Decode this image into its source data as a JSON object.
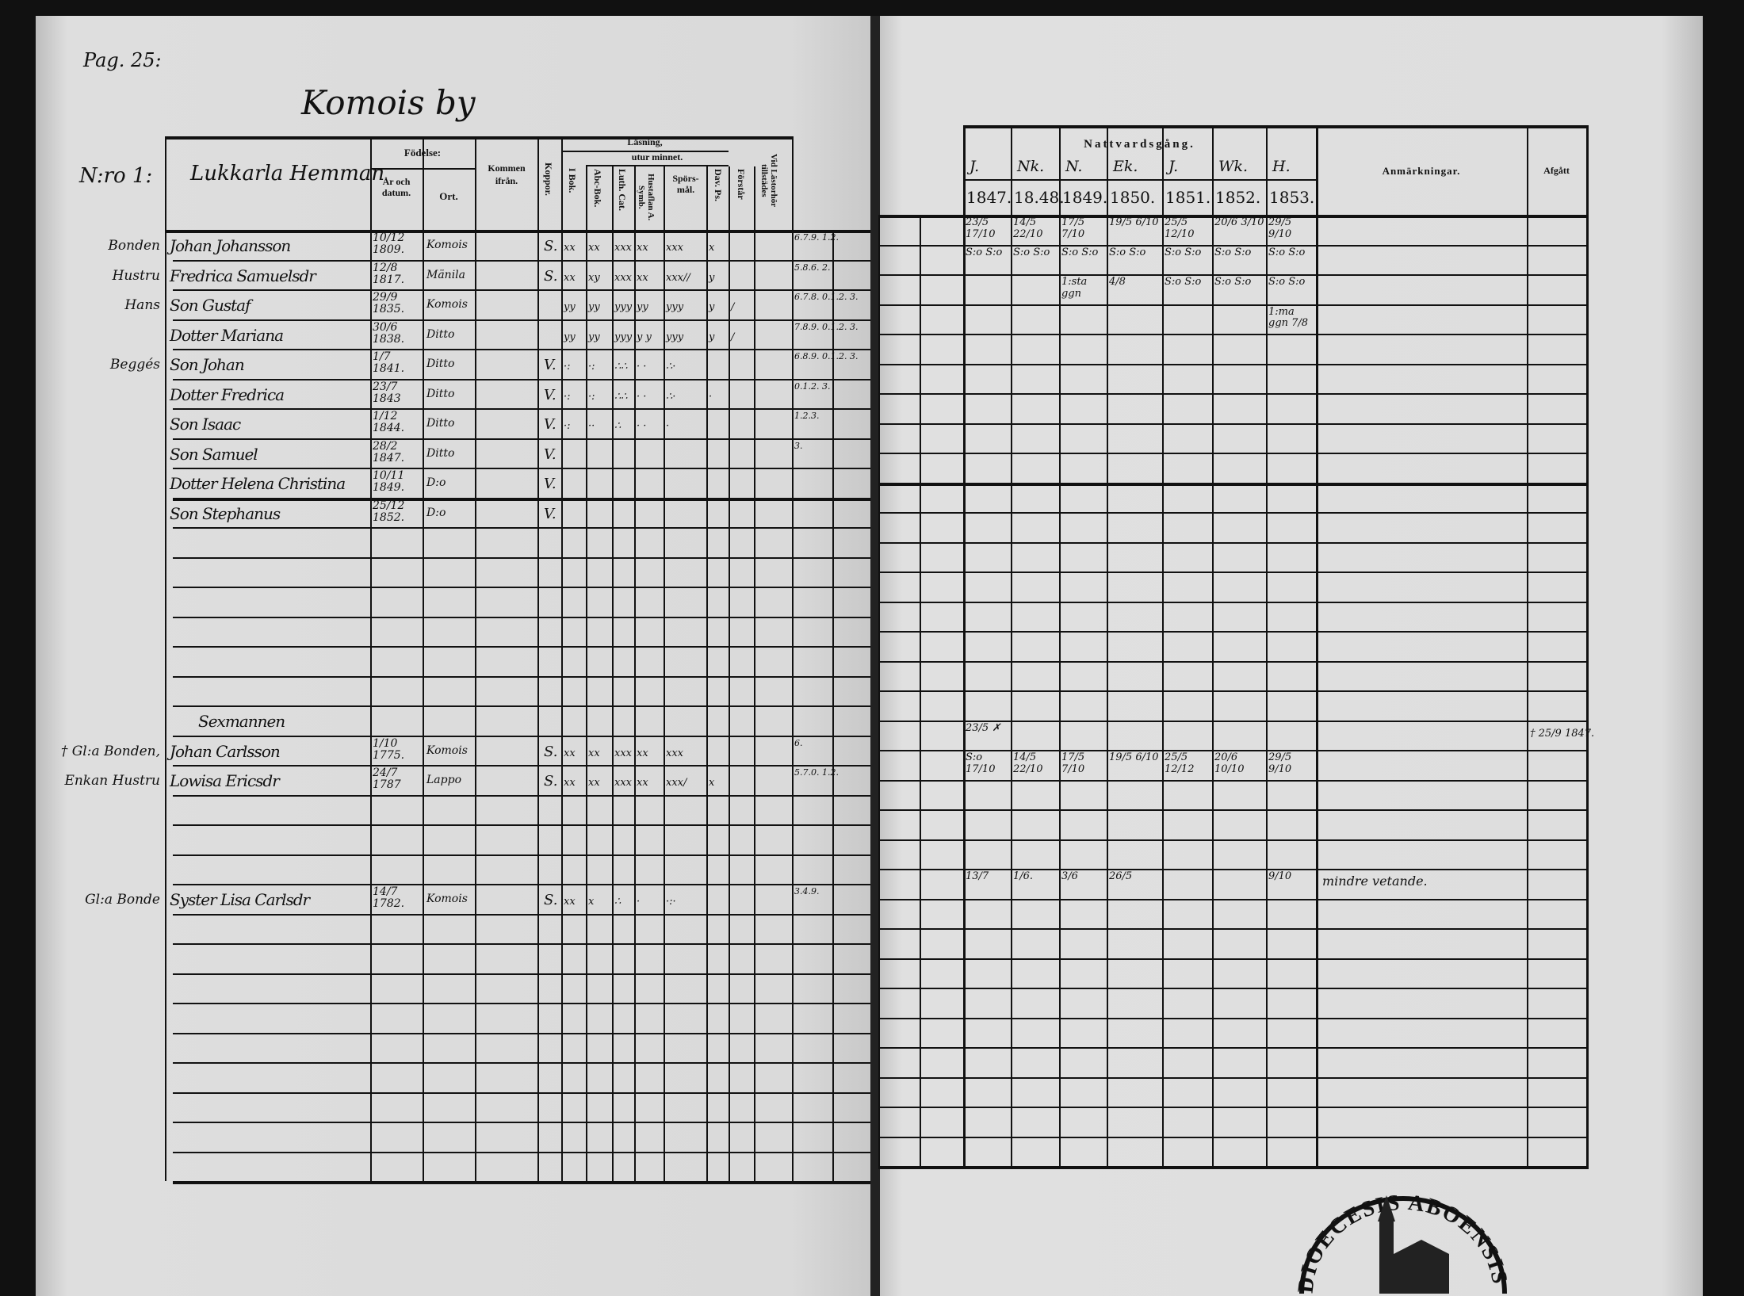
{
  "left": {
    "page_label": "Pag. 25:",
    "village": "Komois by",
    "household_no": "N:ro 1:",
    "farm": "Lukkarla Hemman",
    "headers": {
      "fodelse": "Födelse:",
      "ar": "År och datum.",
      "ort": "Ort.",
      "kommen": "Kommen ifrån.",
      "koppor": "Koppor.",
      "lasning": "Läsning,",
      "utur": "utur minnet.",
      "ibok": "I Bok.",
      "abc": "Abc-Bok.",
      "luth": "Luth. Cat.",
      "hust": "Hustaflan A. Symb.",
      "spors": "Spörs-mål.",
      "dav": "Dav. Ps.",
      "forstar": "Förstår",
      "vid": "Vid Lästorhör tillstädes"
    }
  },
  "right": {
    "headers": {
      "nattvard": "Nattvardsgång.",
      "parishes": [
        "J.",
        "Nk.",
        "N.",
        "Ek.",
        "J.",
        "Wk.",
        "H."
      ],
      "years": [
        "1847.",
        "18.48.",
        "1849.",
        "1850.",
        "1851.",
        "1852.",
        "1853."
      ],
      "anm": "Anmärkningar.",
      "afgatt": "Afgått"
    }
  },
  "members": [
    {
      "row": 0,
      "role": "Bonden",
      "name": "Johan Johansson",
      "born": "10/12 1809.",
      "place": "Komois",
      "koppor": "S.",
      "reading": [
        "xx",
        "xx",
        "xxx",
        "xx",
        "xxx",
        "x",
        ""
      ],
      "vid": "6.7.9. 1.2.",
      "nattvard": [
        "23/5 17/10",
        "14/5 22/10",
        "17/5 7/10",
        "19/5 6/10",
        "25/5 12/10",
        "20/6 3/10",
        "29/5 9/10"
      ],
      "anm": "",
      "afgatt": ""
    },
    {
      "row": 1,
      "role": "Hustru",
      "name": "Fredrica Samuelsdr",
      "born": "12/8 1817.",
      "place": "Mänila",
      "koppor": "S.",
      "reading": [
        "xx",
        "xy",
        "xxx",
        "xx",
        "xxx//",
        "y",
        ""
      ],
      "vid": "5.8.6. 2.",
      "nattvard": [
        "S:o S:o",
        "S:o S:o",
        "S:o S:o",
        "S:o S:o",
        "S:o S:o",
        "S:o S:o",
        "S:o S:o"
      ],
      "anm": "",
      "afgatt": ""
    },
    {
      "row": 2,
      "role": "Hans",
      "name": "Son Gustaf",
      "born": "29/9 1835.",
      "place": "Komois",
      "koppor": "",
      "reading": [
        "yy",
        "yy",
        "yyy",
        "yy",
        "yyy",
        "y",
        "/"
      ],
      "vid": "6.7.8. 0.1.2. 3.",
      "nattvard": [
        "",
        "",
        "1:sta ggn",
        "4/8",
        "S:o S:o",
        "S:o S:o",
        "S:o S:o"
      ],
      "anm": "",
      "afgatt": ""
    },
    {
      "row": 3,
      "role": "",
      "name": "Dotter Mariana",
      "born": "30/6 1838.",
      "place": "Ditto",
      "koppor": "",
      "reading": [
        "yy",
        "yy",
        "yyy",
        "y y",
        "yyy",
        "y",
        "/"
      ],
      "vid": "7.8.9. 0.1.2. 3.",
      "nattvard": [
        "",
        "",
        "",
        "",
        "",
        "",
        "1:ma ggn 7/8"
      ],
      "anm": "",
      "afgatt": ""
    },
    {
      "row": 4,
      "role": "Beggés",
      "name": "Son Johan",
      "born": "1/7 1841.",
      "place": "Ditto",
      "koppor": "V.",
      "reading": [
        "·:",
        "·:",
        "∴∴",
        "· ·",
        "∴·",
        "",
        ""
      ],
      "vid": "6.8.9. 0.1.2. 3.",
      "nattvard": [
        "",
        "",
        "",
        "",
        "",
        "",
        ""
      ],
      "anm": "",
      "afgatt": ""
    },
    {
      "row": 5,
      "role": "",
      "name": "Dotter Fredrica",
      "born": "23/7 1843",
      "place": "Ditto",
      "koppor": "V.",
      "reading": [
        "·:",
        "·:",
        "∴∴",
        "· ·",
        "∴·",
        "·",
        ""
      ],
      "vid": "0.1.2. 3.",
      "nattvard": [
        "",
        "",
        "",
        "",
        "",
        "",
        ""
      ],
      "anm": "",
      "afgatt": ""
    },
    {
      "row": 6,
      "role": "",
      "name": "Son Isaac",
      "born": "1/12 1844.",
      "place": "Ditto",
      "koppor": "V.",
      "reading": [
        "·:",
        "··",
        "∴",
        "· ·",
        "·",
        "",
        ""
      ],
      "vid": "1.2.3.",
      "nattvard": [
        "",
        "",
        "",
        "",
        "",
        "",
        ""
      ],
      "anm": "",
      "afgatt": ""
    },
    {
      "row": 7,
      "role": "",
      "name": "Son Samuel",
      "born": "28/2 1847.",
      "place": "Ditto",
      "koppor": "V.",
      "reading": [
        "",
        "",
        "",
        "",
        "",
        "",
        ""
      ],
      "vid": "3.",
      "nattvard": [
        "",
        "",
        "",
        "",
        "",
        "",
        ""
      ],
      "anm": "",
      "afgatt": ""
    },
    {
      "row": 8,
      "role": "",
      "name": "Dotter Helena Christina",
      "born": "10/11 1849.",
      "place": "D:o",
      "koppor": "V.",
      "reading": [
        "",
        "",
        "",
        "",
        "",
        "",
        ""
      ],
      "vid": "",
      "nattvard": [
        "",
        "",
        "",
        "",
        "",
        "",
        ""
      ],
      "anm": "",
      "afgatt": ""
    },
    {
      "row": 9,
      "role": "",
      "name": "Son Stephanus",
      "born": "25/12 1852.",
      "place": "D:o",
      "koppor": "V.",
      "reading": [
        "",
        "",
        "",
        "",
        "",
        "",
        ""
      ],
      "vid": "",
      "nattvard": [
        "",
        "",
        "",
        "",
        "",
        "",
        ""
      ],
      "anm": "",
      "afgatt": ""
    },
    {
      "row": 16,
      "role": "",
      "name": "Sexmannen",
      "born": "",
      "place": "",
      "koppor": "",
      "reading": [
        "",
        "",
        "",
        "",
        "",
        "",
        ""
      ],
      "vid": "",
      "nattvard": [
        "",
        "",
        "",
        "",
        "",
        "",
        ""
      ],
      "anm": "",
      "afgatt": ""
    },
    {
      "row": 17,
      "role": "† Gl:a Bonden,",
      "name": "Johan Carlsson",
      "born": "1/10 1775.",
      "place": "Komois",
      "koppor": "S.",
      "reading": [
        "xx",
        "xx",
        "xxx",
        "xx",
        "xxx",
        "",
        ""
      ],
      "vid": "6.",
      "nattvard": [
        "23/5 ✗",
        "",
        "",
        "",
        "",
        "",
        ""
      ],
      "anm": "",
      "afgatt": "† 25/9 1847."
    },
    {
      "row": 18,
      "role": "Enkan Hustru",
      "name": "Lowisa Ericsdr",
      "born": "24/7 1787",
      "place": "Lappo",
      "koppor": "S.",
      "reading": [
        "xx",
        "xx",
        "xxx",
        "xx",
        "xxx/",
        "x",
        ""
      ],
      "vid": "5.7.0. 1.2.",
      "nattvard": [
        "S:o 17/10",
        "14/5 22/10",
        "17/5 7/10",
        "19/5 6/10",
        "25/5 12/12",
        "20/6 10/10",
        "29/5 9/10"
      ],
      "anm": "",
      "afgatt": ""
    },
    {
      "row": 22,
      "role": "Gl:a Bonde",
      "name": "Syster Lisa Carlsdr",
      "born": "14/7 1782.",
      "place": "Komois",
      "koppor": "S.",
      "reading": [
        "xx",
        "x",
        "∴",
        "·",
        "·:·",
        "",
        ""
      ],
      "vid": "3.4.9.",
      "nattvard": [
        "13/7",
        "1/6.",
        "3/6",
        "26/5",
        "",
        "",
        "9/10"
      ],
      "anm": "mindre vetande.",
      "afgatt": ""
    }
  ],
  "stamp": {
    "text": "DIOECESIS ABOENSIS"
  }
}
